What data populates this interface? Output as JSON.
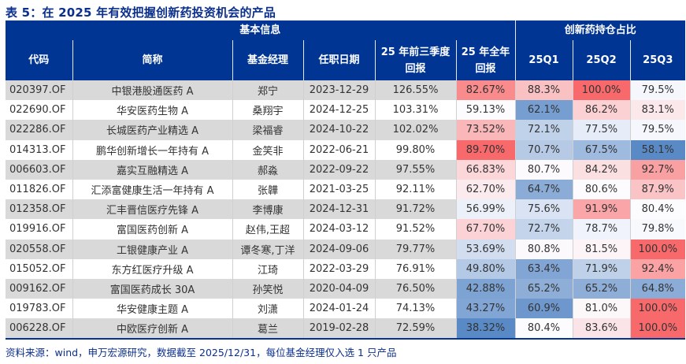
{
  "title": "表 5：在 2025 年有效把握创新药投资机会的产品",
  "header": {
    "group_basic": "基本信息",
    "group_holdings": "创新药持仓占比",
    "columns": [
      "代码",
      "简称",
      "基金经理",
      "任职日期",
      "25 年前三季度回报",
      "25 年全年回报",
      "25Q1",
      "25Q2",
      "25Q3"
    ]
  },
  "heatmap_colors": {
    "low": "#5a8ac6",
    "mid": "#fcfcff",
    "high": "#f8696b"
  },
  "rows": [
    [
      "020397.OF",
      "中银港股通医药 A",
      "郑宁",
      "2023-12-29",
      "126.55%",
      "82.67%",
      "88.3%",
      "100.0%",
      "79.5%"
    ],
    [
      "022690.OF",
      "华安医药生物 A",
      "桑翔宇",
      "2024-12-25",
      "103.31%",
      "59.13%",
      "62.1%",
      "86.2%",
      "83.1%"
    ],
    [
      "022286.OF",
      "长城医药产业精选 A",
      "梁福睿",
      "2024-10-22",
      "102.02%",
      "73.52%",
      "72.1%",
      "77.5%",
      "79.5%"
    ],
    [
      "014313.OF",
      "鹏华创新增长一年持有 A",
      "金笑非",
      "2022-06-21",
      "99.80%",
      "89.70%",
      "70.7%",
      "67.5%",
      "58.1%"
    ],
    [
      "006603.OF",
      "嘉实互融精选 A",
      "郝淼",
      "2022-09-22",
      "97.55%",
      "66.83%",
      "80.7%",
      "84.2%",
      "92.7%"
    ],
    [
      "011826.OF",
      "汇添富健康生活一年持有 A",
      "张韡",
      "2021-03-25",
      "92.11%",
      "62.70%",
      "64.7%",
      "80.6%",
      "87.9%"
    ],
    [
      "012358.OF",
      "汇丰晋信医疗先锋 A",
      "李博康",
      "2024-12-31",
      "91.72%",
      "56.99%",
      "75.6%",
      "91.9%",
      "80.4%"
    ],
    [
      "019916.OF",
      "富国医药创新 A",
      "赵伟,王超",
      "2024-03-12",
      "91.52%",
      "67.70%",
      "72.7%",
      "78.7%",
      "79.8%"
    ],
    [
      "020558.OF",
      "工银健康产业 A",
      "谭冬寒,丁洋",
      "2024-09-06",
      "79.77%",
      "53.69%",
      "80.8%",
      "81.5%",
      "100.0%"
    ],
    [
      "015052.OF",
      "东方红医疗升级 A",
      "江琦",
      "2022-03-29",
      "76.91%",
      "49.80%",
      "63.4%",
      "71.9%",
      "92.4%"
    ],
    [
      "009162.OF",
      "富国医药成长 30A",
      "孙笑悦",
      "2020-04-09",
      "76.50%",
      "42.88%",
      "65.2%",
      "65.2%",
      "64.8%"
    ],
    [
      "019783.OF",
      "华安健康主题 A",
      "刘潇",
      "2024-01-24",
      "74.13%",
      "43.27%",
      "60.9%",
      "81.0%",
      "100.0%"
    ],
    [
      "006228.OF",
      "中欧医疗创新 A",
      "葛兰",
      "2019-02-28",
      "72.59%",
      "38.32%",
      "80.4%",
      "83.6%",
      "100.0%"
    ]
  ],
  "source": "资料来源：wind，申万宏源研究，数据截至 2025/12/31，每位基金经理仅入选 1 只产品"
}
